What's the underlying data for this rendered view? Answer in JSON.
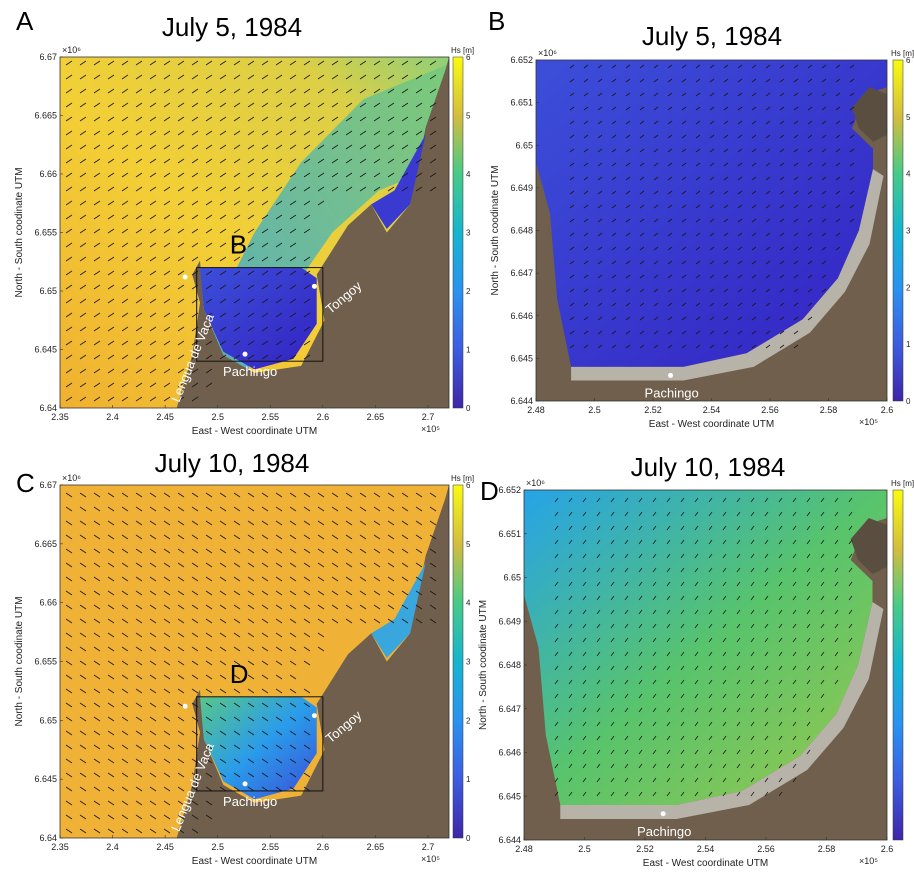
{
  "colors": {
    "ocean_high": "#f0b833",
    "ocean_highest": "#f2de3a",
    "ocean_mid": "#3fb8c8",
    "ocean_low": "#3a5ad8",
    "ocean_lowest": "#3523c8",
    "land": "#6f5f4c",
    "beach": "#b7b3a8",
    "marker": "#ffffff"
  },
  "colorbar": {
    "label": "Hs [m]",
    "ticks": [
      "0",
      "1",
      "2",
      "3",
      "4",
      "5",
      "6"
    ]
  },
  "chart_data": [
    {
      "type": "heatmap",
      "panel_letter": "A",
      "title": "July 5, 1984",
      "xlabel": "East - West coordinate UTM",
      "ylabel": "North - South coodinate UTM",
      "x_exponent": "×10⁵",
      "y_exponent": "×10⁶",
      "xlim": [
        2.35,
        2.72
      ],
      "ylim": [
        6.64,
        6.67
      ],
      "xticks": [
        "2.35",
        "2.4",
        "2.45",
        "2.5",
        "2.55",
        "2.6",
        "2.65",
        "2.7"
      ],
      "yticks": [
        "6.64",
        "6.645",
        "6.65",
        "6.655",
        "6.66",
        "6.665",
        "6.67"
      ],
      "colorbar_range": [
        0,
        6
      ],
      "offshore_hs": 5.3,
      "bay_hs": 0.7,
      "wave_direction": "from south-west",
      "inset_label": "B",
      "inset_box": {
        "x": [
          2.48,
          2.6
        ],
        "y": [
          6.644,
          6.652
        ]
      },
      "places": [
        {
          "name": "Lengua de Vaca",
          "x": 2.469,
          "y": 6.6512
        },
        {
          "name": "Pachingo",
          "x": 2.526,
          "y": 6.6446
        },
        {
          "name": "Tongoy",
          "x": 2.592,
          "y": 6.6504
        }
      ]
    },
    {
      "type": "heatmap",
      "panel_letter": "B",
      "title": "July 5, 1984",
      "xlabel": "East - West coordinate UTM",
      "ylabel": "North - South coodinate UTM",
      "x_exponent": "×10⁵",
      "y_exponent": "×10⁶",
      "xlim": [
        2.48,
        2.6
      ],
      "ylim": [
        6.644,
        6.652
      ],
      "xticks": [
        "2.48",
        "2.5",
        "2.52",
        "2.54",
        "2.56",
        "2.58",
        "2.6"
      ],
      "yticks": [
        "6.644",
        "6.645",
        "6.646",
        "6.647",
        "6.648",
        "6.649",
        "6.65",
        "6.651",
        "6.652"
      ],
      "colorbar_range": [
        0,
        6
      ],
      "bay_hs": 0.8,
      "wave_direction": "from south-west",
      "places": [
        {
          "name": "Pachingo",
          "x": 2.526,
          "y": 6.6446
        }
      ]
    },
    {
      "type": "heatmap",
      "panel_letter": "C",
      "title": "July 10, 1984",
      "xlabel": "East - West coordinate UTM",
      "ylabel": "North - South coodinate UTM",
      "x_exponent": "×10⁵",
      "y_exponent": "×10⁶",
      "xlim": [
        2.35,
        2.72
      ],
      "ylim": [
        6.64,
        6.67
      ],
      "xticks": [
        "2.35",
        "2.4",
        "2.45",
        "2.5",
        "2.55",
        "2.6",
        "2.65",
        "2.7"
      ],
      "yticks": [
        "6.64",
        "6.645",
        "6.65",
        "6.655",
        "6.66",
        "6.665",
        "6.67"
      ],
      "colorbar_range": [
        0,
        6
      ],
      "offshore_hs": 5.0,
      "bay_hs": 2.5,
      "wave_direction": "from north-west",
      "inset_label": "D",
      "inset_box": {
        "x": [
          2.48,
          2.6
        ],
        "y": [
          6.644,
          6.652
        ]
      },
      "places": [
        {
          "name": "Lengua de Vaca",
          "x": 2.469,
          "y": 6.6512
        },
        {
          "name": "Pachingo",
          "x": 2.526,
          "y": 6.6446
        },
        {
          "name": "Tongoy",
          "x": 2.592,
          "y": 6.6504
        }
      ]
    },
    {
      "type": "heatmap",
      "panel_letter": "D",
      "title": "July 10, 1984",
      "xlabel": "East - West coordinate UTM",
      "ylabel": "North - South coodinate UTM",
      "x_exponent": "×10⁵",
      "y_exponent": "×10⁶",
      "xlim": [
        2.48,
        2.6
      ],
      "ylim": [
        6.644,
        6.652
      ],
      "xticks": [
        "2.48",
        "2.5",
        "2.52",
        "2.54",
        "2.56",
        "2.58",
        "2.6"
      ],
      "yticks": [
        "6.644",
        "6.645",
        "6.646",
        "6.647",
        "6.648",
        "6.649",
        "6.65",
        "6.651",
        "6.652"
      ],
      "colorbar_range": [
        0,
        6
      ],
      "bay_hs": 3.0,
      "wave_direction": "from north-west",
      "places": [
        {
          "name": "Pachingo",
          "x": 2.526,
          "y": 6.6446
        }
      ]
    }
  ]
}
